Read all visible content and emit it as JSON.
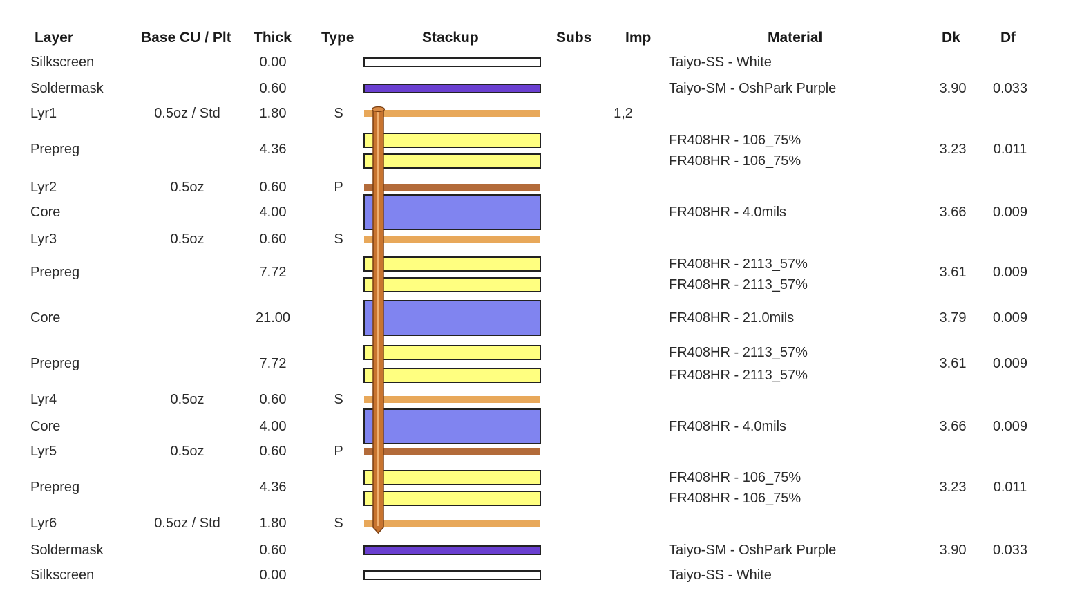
{
  "headers": {
    "layer": "Layer",
    "base": "Base CU / Plt",
    "thick": "Thick",
    "type": "Type",
    "stackup": "Stackup",
    "subs": "Subs",
    "imp": "Imp",
    "material": "Material",
    "dk": "Dk",
    "df": "Df"
  },
  "colors": {
    "silkscreen": "#ffffff",
    "soldermask": "#6a3fd0",
    "signal_copper": "#e8a85a",
    "plane_copper": "#b36b3a",
    "prepreg": "#ffff80",
    "core": "#8084f0",
    "via": "#c8742f"
  },
  "rows": [
    {
      "layer": "Silkscreen",
      "base": "",
      "thick": "0.00",
      "type": "",
      "imp": "",
      "material": [
        "Taiyo-SS - White"
      ],
      "dk": "",
      "df": ""
    },
    {
      "layer": "Soldermask",
      "base": "",
      "thick": "0.60",
      "type": "",
      "imp": "",
      "material": [
        "Taiyo-SM - OshPark Purple"
      ],
      "dk": "3.90",
      "df": "0.033"
    },
    {
      "layer": "Lyr1",
      "base": "0.5oz / Std",
      "thick": "1.80",
      "type": "S",
      "imp": "1,2",
      "material": [],
      "dk": "",
      "df": ""
    },
    {
      "layer": "Prepreg",
      "base": "",
      "thick": "4.36",
      "type": "",
      "imp": "",
      "material": [
        "FR408HR - 106_75%",
        "FR408HR - 106_75%"
      ],
      "dk": "3.23",
      "df": "0.011"
    },
    {
      "layer": "Lyr2",
      "base": "0.5oz",
      "thick": "0.60",
      "type": "P",
      "imp": "",
      "material": [],
      "dk": "",
      "df": ""
    },
    {
      "layer": "Core",
      "base": "",
      "thick": "4.00",
      "type": "",
      "imp": "",
      "material": [
        "FR408HR - 4.0mils"
      ],
      "dk": "3.66",
      "df": "0.009"
    },
    {
      "layer": "Lyr3",
      "base": "0.5oz",
      "thick": "0.60",
      "type": "S",
      "imp": "",
      "material": [],
      "dk": "",
      "df": ""
    },
    {
      "layer": "Prepreg",
      "base": "",
      "thick": "7.72",
      "type": "",
      "imp": "",
      "material": [
        "FR408HR - 2113_57%",
        "FR408HR - 2113_57%"
      ],
      "dk": "3.61",
      "df": "0.009"
    },
    {
      "layer": "Core",
      "base": "",
      "thick": "21.00",
      "type": "",
      "imp": "",
      "material": [
        "FR408HR - 21.0mils"
      ],
      "dk": "3.79",
      "df": "0.009"
    },
    {
      "layer": "Prepreg",
      "base": "",
      "thick": "7.72",
      "type": "",
      "imp": "",
      "material": [
        "FR408HR - 2113_57%",
        "FR408HR - 2113_57%"
      ],
      "dk": "3.61",
      "df": "0.009"
    },
    {
      "layer": "Lyr4",
      "base": "0.5oz",
      "thick": "0.60",
      "type": "S",
      "imp": "",
      "material": [],
      "dk": "",
      "df": ""
    },
    {
      "layer": "Core",
      "base": "",
      "thick": "4.00",
      "type": "",
      "imp": "",
      "material": [
        "FR408HR - 4.0mils"
      ],
      "dk": "3.66",
      "df": "0.009"
    },
    {
      "layer": "Lyr5",
      "base": "0.5oz",
      "thick": "0.60",
      "type": "P",
      "imp": "",
      "material": [],
      "dk": "",
      "df": ""
    },
    {
      "layer": "Prepreg",
      "base": "",
      "thick": "4.36",
      "type": "",
      "imp": "",
      "material": [
        "FR408HR - 106_75%",
        "FR408HR - 106_75%"
      ],
      "dk": "3.23",
      "df": "0.011"
    },
    {
      "layer": "Lyr6",
      "base": "0.5oz / Std",
      "thick": "1.80",
      "type": "S",
      "imp": "",
      "material": [],
      "dk": "",
      "df": ""
    },
    {
      "layer": "Soldermask",
      "base": "",
      "thick": "0.60",
      "type": "",
      "imp": "",
      "material": [
        "Taiyo-SM - OshPark Purple"
      ],
      "dk": "3.90",
      "df": "0.033"
    },
    {
      "layer": "Silkscreen",
      "base": "",
      "thick": "0.00",
      "type": "",
      "imp": "",
      "material": [
        "Taiyo-SS - White"
      ],
      "dk": "",
      "df": ""
    }
  ]
}
